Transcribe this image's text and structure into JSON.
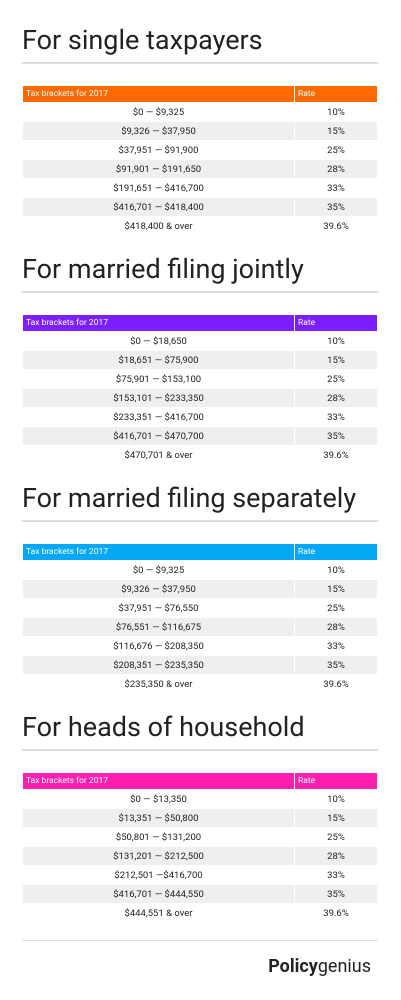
{
  "sections": [
    {
      "title": "For single taxpayers",
      "header_color": "#ff6a00",
      "columns": [
        "Tax brackets for 2017",
        "Rate"
      ],
      "rows": [
        [
          "$0 — $9,325",
          "10%"
        ],
        [
          "$9,326 — $37,950",
          "15%"
        ],
        [
          "$37,951 — $91,900",
          "25%"
        ],
        [
          "$91,901 — $191,650",
          "28%"
        ],
        [
          "$191,651 — $416,700",
          "33%"
        ],
        [
          "$416,701 — $418,400",
          "35%"
        ],
        [
          "$418,400 & over",
          "39.6%"
        ]
      ]
    },
    {
      "title": "For married filing jointly",
      "header_color": "#7a1fff",
      "columns": [
        "Tax brackets for 2017",
        "Rate"
      ],
      "rows": [
        [
          "$0 — $18,650",
          "10%"
        ],
        [
          "$18,651 — $75,900",
          "15%"
        ],
        [
          "$75,901 — $153,100",
          "25%"
        ],
        [
          "$153,101 — $233,350",
          "28%"
        ],
        [
          "$233,351 — $416,700",
          "33%"
        ],
        [
          "$416,701 — $470,700",
          "35%"
        ],
        [
          "$470,701 & over",
          "39.6%"
        ]
      ]
    },
    {
      "title": "For married filing separately",
      "header_color": "#06a8f5",
      "columns": [
        "Tax brackets for 2017",
        "Rate"
      ],
      "rows": [
        [
          "$0 — $9,325",
          "10%"
        ],
        [
          "$9,326 — $37,950",
          "15%"
        ],
        [
          "$37,951 — $76,550",
          "25%"
        ],
        [
          "$76,551 — $116,675",
          "28%"
        ],
        [
          "$116,676 — $208,350",
          "33%"
        ],
        [
          "$208,351 — $235,350",
          "35%"
        ],
        [
          "$235,350 & over",
          "39.6%"
        ]
      ]
    },
    {
      "title": "For heads of household",
      "header_color": "#ff1fae",
      "columns": [
        "Tax brackets for 2017",
        "Rate"
      ],
      "rows": [
        [
          "$0 — $13,350",
          "10%"
        ],
        [
          "$13,351 — $50,800",
          "15%"
        ],
        [
          "$50,801 — $131,200",
          "25%"
        ],
        [
          "$131,201 — $212,500",
          "28%"
        ],
        [
          "$212,501 —$416,700",
          "33%"
        ],
        [
          "$416,701 — $444,550",
          "35%"
        ],
        [
          "$444,551 & over",
          "39.6%"
        ]
      ]
    }
  ],
  "footer": {
    "logo_bold": "Policy",
    "logo_regular": "genius"
  }
}
